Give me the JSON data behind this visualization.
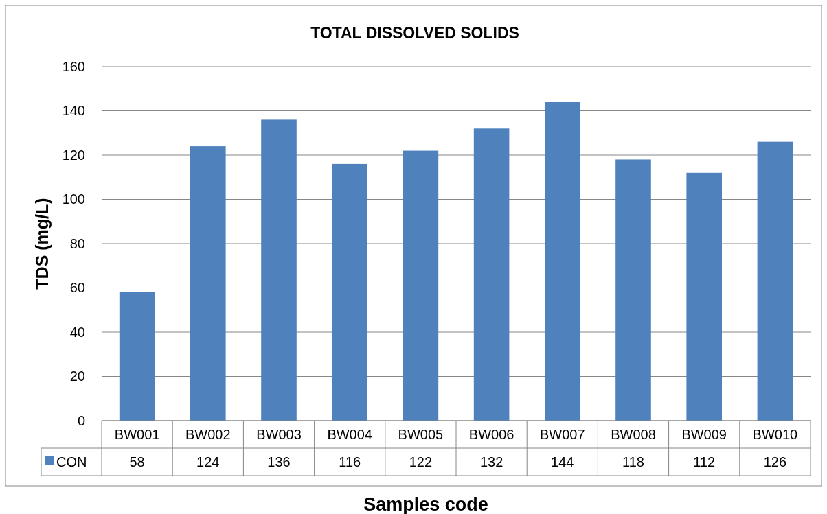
{
  "chart_data": {
    "type": "bar",
    "title": "TOTAL DISSOLVED SOLIDS",
    "xlabel": "Samples code",
    "ylabel": "TDS (mg/L)",
    "categories": [
      "BW001",
      "BW002",
      "BW003",
      "BW004",
      "BW005",
      "BW006",
      "BW007",
      "BW008",
      "BW009",
      "BW010"
    ],
    "series": [
      {
        "name": "CON",
        "color": "#4f81bd",
        "values": [
          58,
          124,
          136,
          116,
          122,
          132,
          144,
          118,
          112,
          126
        ]
      }
    ],
    "ylim": [
      0,
      160
    ],
    "yticks": [
      0,
      20,
      40,
      60,
      80,
      100,
      120,
      140,
      160
    ],
    "grid": "y",
    "legend": "bottom",
    "data_labels": true
  }
}
